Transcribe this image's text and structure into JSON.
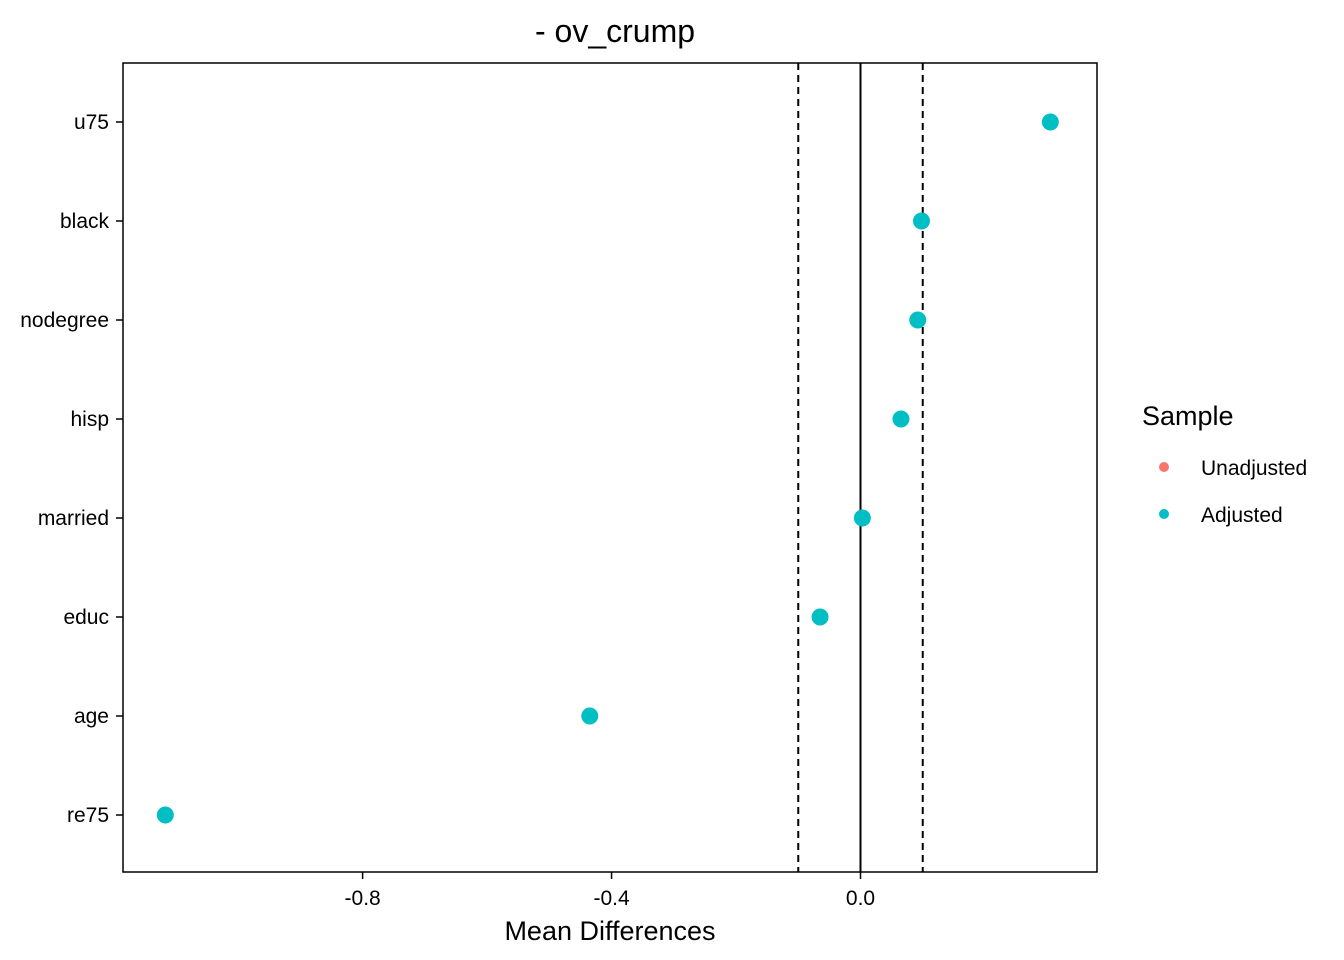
{
  "chart_data": {
    "type": "scatter",
    "title": "- ov_crump",
    "xlabel": "Mean Differences",
    "ylabel": "",
    "xlim": [
      -1.185,
      0.38
    ],
    "x_ticks": [
      -0.8,
      -0.4,
      0.0
    ],
    "x_tick_labels": [
      "-0.8",
      "-0.4",
      "0.0"
    ],
    "categories": [
      "u75",
      "black",
      "nodegree",
      "hisp",
      "married",
      "educ",
      "age",
      "re75"
    ],
    "reference_lines": {
      "solid": [
        0.0
      ],
      "dashed": [
        -0.1,
        0.1
      ]
    },
    "series": [
      {
        "name": "Unadjusted",
        "color": "#F8766D",
        "values": []
      },
      {
        "name": "Adjusted",
        "color": "#00BFC4",
        "values": [
          0.305,
          0.098,
          0.092,
          0.065,
          0.003,
          -0.065,
          -0.435,
          -1.117
        ]
      }
    ],
    "legend": {
      "title": "Sample",
      "position": "right",
      "entries": [
        "Unadjusted",
        "Adjusted"
      ]
    },
    "grid": false
  }
}
